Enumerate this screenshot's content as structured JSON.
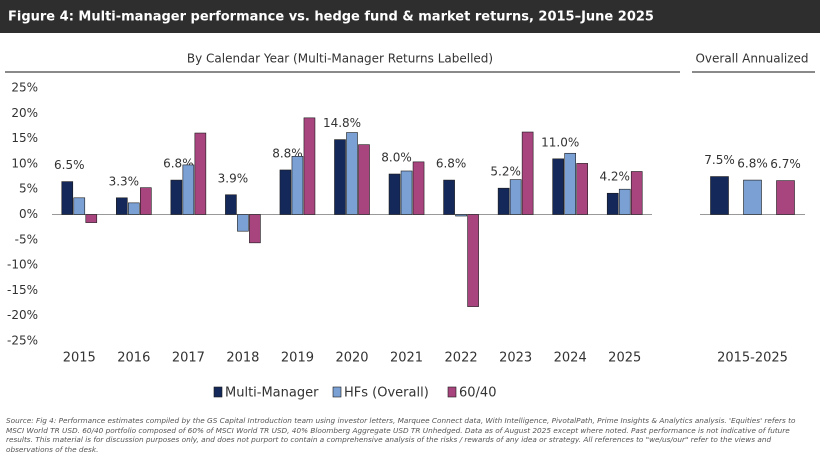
{
  "chart_data": [
    {
      "type": "bar",
      "title": "Figure 4: Multi-manager performance vs. hedge fund & market returns, 2015–June 2025",
      "subtitle": "By Calendar Year (Multi-Manager Returns Labelled)",
      "categories": [
        "2015",
        "2016",
        "2017",
        "2018",
        "2019",
        "2020",
        "2021",
        "2022",
        "2023",
        "2024",
        "2025"
      ],
      "series": [
        {
          "name": "Multi-Manager",
          "color": "#14285a",
          "values": [
            6.5,
            3.3,
            6.8,
            3.9,
            8.8,
            14.8,
            8.0,
            6.8,
            5.2,
            11.0,
            4.2
          ],
          "value_labels": [
            "6.5%",
            "3.3%",
            "6.8%",
            "3.9%",
            "8.8%",
            "14.8%",
            "8.0%",
            "6.8%",
            "5.2%",
            "11.0%",
            "4.2%"
          ]
        },
        {
          "name": "HFs (Overall)",
          "color": "#7ba0d4",
          "values": [
            3.3,
            2.3,
            9.8,
            -3.3,
            11.5,
            16.2,
            8.6,
            -0.3,
            6.9,
            12.1,
            5.0
          ]
        },
        {
          "name": "60/40",
          "color": "#a8457f",
          "values": [
            -1.6,
            5.3,
            16.1,
            -5.6,
            19.1,
            13.8,
            10.4,
            -18.2,
            16.3,
            10.1,
            8.5
          ]
        }
      ],
      "ylim": [
        -25,
        25
      ],
      "yticks": [
        {
          "value": 25,
          "label": "25%"
        },
        {
          "value": 20,
          "label": "20%"
        },
        {
          "value": 15,
          "label": "15%"
        },
        {
          "value": 10,
          "label": "10%"
        },
        {
          "value": 5,
          "label": "5%"
        },
        {
          "value": 0,
          "label": "0%"
        },
        {
          "value": -5,
          "label": "-5%"
        },
        {
          "value": -10,
          "label": "-10%"
        },
        {
          "value": -15,
          "label": "-15%"
        },
        {
          "value": -20,
          "label": "-20%"
        },
        {
          "value": -25,
          "label": "-25%"
        }
      ],
      "grid": false
    },
    {
      "type": "bar",
      "subtitle": "Overall Annualized",
      "categories": [
        "2015-2025"
      ],
      "series": [
        {
          "color": "#14285a",
          "values": [
            7.5
          ],
          "value_labels": [
            "7.5%"
          ]
        },
        {
          "color": "#7ba0d4",
          "values": [
            6.8
          ],
          "value_labels": [
            "6.8%"
          ]
        },
        {
          "color": "#a8457f",
          "values": [
            6.7
          ],
          "value_labels": [
            "6.7%"
          ]
        }
      ],
      "ylim": [
        -25,
        25
      ]
    }
  ],
  "source": "Source: Fig 4: Performance estimates compiled by the GS Capital Introduction team using investor letters, Marquee Connect data, With Intelligence, PivotalPath, Prime Insights & Analytics analysis. 'Equities' refers to MSCI World TR USD. 60/40 portfolio composed of 60% of MSCI World TR USD, 40% Bloomberg Aggregate USD TR Unhedged. Data as of August 2025 except where noted. Past performance is not indicative of future results. This material is for discussion purposes only, and does not purport to contain a comprehensive analysis of the risks / rewards of any idea or strategy. All references to \"we/us/our\" refer to the views and observations of the desk."
}
